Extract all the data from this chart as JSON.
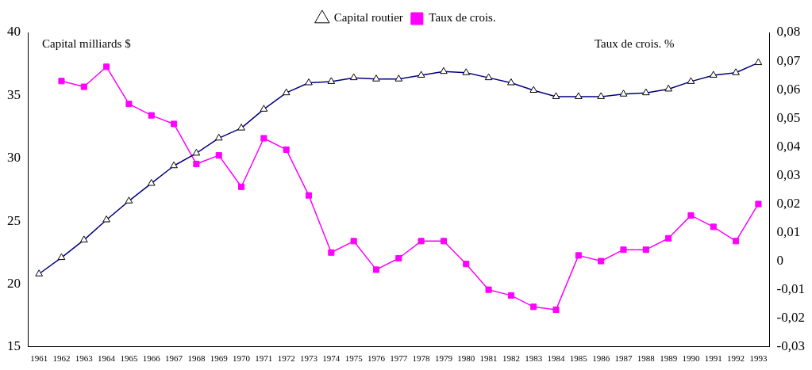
{
  "chart_data": {
    "type": "line",
    "ylabel": "Capital milliards $",
    "y2label": "Taux de crois. %",
    "categories": [
      "1961",
      "1962",
      "1963",
      "1964",
      "1965",
      "1966",
      "1967",
      "1968",
      "1969",
      "1970",
      "1971",
      "1972",
      "1973",
      "1974",
      "1975",
      "1976",
      "1977",
      "1978",
      "1979",
      "1980",
      "1981",
      "1982",
      "1983",
      "1984",
      "1985",
      "1986",
      "1987",
      "1988",
      "1989",
      "1990",
      "1991",
      "1992",
      "1993"
    ],
    "series": [
      {
        "name": "Capital routier",
        "color": "#000080",
        "marker": "triangle",
        "values": [
          20.8,
          22.1,
          23.5,
          25.1,
          26.6,
          28.0,
          29.4,
          30.4,
          31.6,
          32.4,
          33.9,
          35.2,
          36.0,
          36.1,
          36.4,
          36.3,
          36.3,
          36.6,
          36.9,
          36.8,
          36.4,
          36.0,
          35.4,
          34.9,
          34.9,
          34.9,
          35.1,
          35.2,
          35.5,
          36.1,
          36.6,
          36.8,
          37.6
        ]
      },
      {
        "name": "Taux de crois.",
        "color": "#ff00ff",
        "marker": "square",
        "axis": "y2",
        "values": [
          null,
          0.063,
          0.061,
          0.068,
          0.055,
          0.051,
          0.048,
          0.034,
          0.037,
          0.026,
          0.043,
          0.039,
          0.023,
          0.003,
          0.007,
          -0.003,
          0.001,
          0.007,
          0.007,
          -0.001,
          -0.01,
          -0.012,
          -0.016,
          -0.017,
          0.002,
          0.0,
          0.004,
          0.004,
          0.008,
          0.016,
          0.012,
          0.007,
          0.02
        ]
      }
    ],
    "ylim": [
      15,
      40
    ],
    "yticks": [
      15,
      20,
      25,
      30,
      35,
      40
    ],
    "y2lim": [
      -0.03,
      0.08
    ],
    "y2ticks": [
      {
        "value": -0.03,
        "label": "-0,03"
      },
      {
        "value": -0.02,
        "label": "-0,02"
      },
      {
        "value": -0.01,
        "label": "-0,01"
      },
      {
        "value": 0,
        "label": "0"
      },
      {
        "value": 0.01,
        "label": "0,01"
      },
      {
        "value": 0.02,
        "label": "0,02"
      },
      {
        "value": 0.03,
        "label": "0,03"
      },
      {
        "value": 0.04,
        "label": "0,04"
      },
      {
        "value": 0.05,
        "label": "0,05"
      },
      {
        "value": 0.06,
        "label": "0,06"
      },
      {
        "value": 0.07,
        "label": "0,07"
      },
      {
        "value": 0.08,
        "label": "0,08"
      }
    ],
    "grid": false,
    "legend": "top"
  }
}
